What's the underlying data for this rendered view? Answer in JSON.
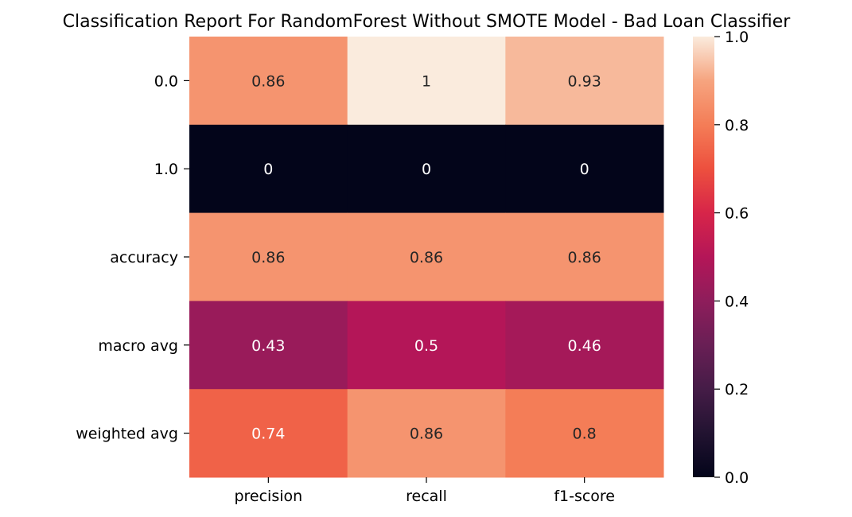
{
  "chart_data": {
    "type": "heatmap",
    "title": "Classification Report For RandomForest Without SMOTE Model - Bad Loan Classifier",
    "xlabel": "",
    "ylabel": "",
    "rows": [
      "0.0",
      "1.0",
      "accuracy",
      "macro avg",
      "weighted avg"
    ],
    "columns": [
      "precision",
      "recall",
      "f1-score"
    ],
    "values": [
      [
        0.86,
        1.0,
        0.93
      ],
      [
        0.0,
        0.0,
        0.0
      ],
      [
        0.86,
        0.86,
        0.86
      ],
      [
        0.43,
        0.5,
        0.46
      ],
      [
        0.74,
        0.86,
        0.8
      ]
    ],
    "annotations": [
      [
        "0.86",
        "1",
        "0.93"
      ],
      [
        "0",
        "0",
        "0"
      ],
      [
        "0.86",
        "0.86",
        "0.86"
      ],
      [
        "0.43",
        "0.5",
        "0.46"
      ],
      [
        "0.74",
        "0.86",
        "0.8"
      ]
    ],
    "colormap": "rocket",
    "colorbar": {
      "vmin": 0.0,
      "vmax": 1.0,
      "ticks": [
        "0.0",
        "0.2",
        "0.4",
        "0.6",
        "0.8",
        "1.0"
      ]
    }
  }
}
